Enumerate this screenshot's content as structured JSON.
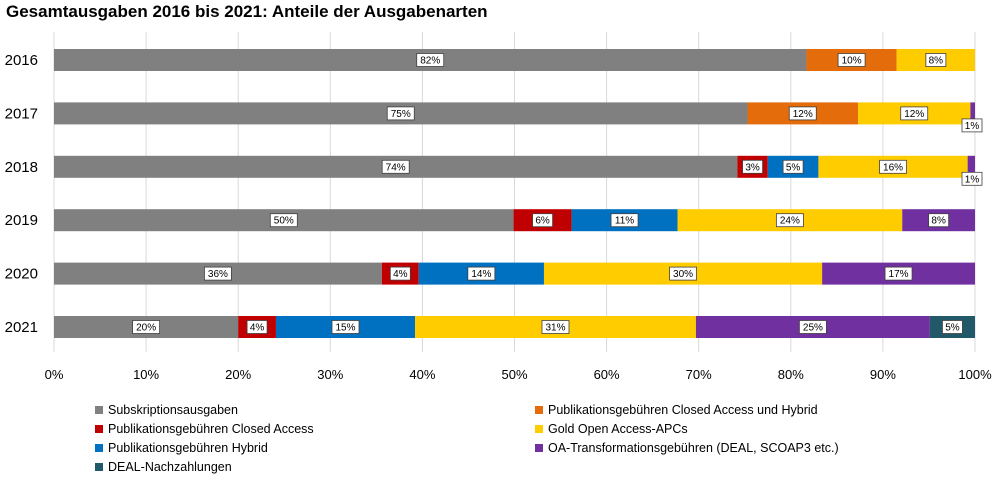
{
  "chart_data": {
    "type": "bar",
    "orientation": "horizontal",
    "stacked": "percent",
    "title": "Gesamtausgaben 2016 bis 2021: Anteile der Ausgabenarten",
    "categories": [
      "2016",
      "2017",
      "2018",
      "2019",
      "2020",
      "2021"
    ],
    "x_ticks": [
      "0%",
      "10%",
      "20%",
      "30%",
      "40%",
      "50%",
      "60%",
      "70%",
      "80%",
      "90%",
      "100%"
    ],
    "xlim": [
      0,
      100
    ],
    "grid": true,
    "legend_position": "bottom",
    "series": [
      {
        "name": "Subskriptionsausgaben",
        "color": "#808080",
        "values": [
          81.7,
          75.3,
          74.2,
          49.9,
          35.6,
          20.0
        ],
        "labels": [
          "82%",
          "75%",
          "74%",
          "50%",
          "36%",
          "20%"
        ]
      },
      {
        "name": "Publikationsgebühren Closed Access",
        "color": "#c00000",
        "values": [
          0,
          0,
          3.3,
          6.3,
          4.0,
          4.1
        ],
        "labels": [
          "",
          "",
          "3%",
          "6%",
          "4%",
          "4%"
        ]
      },
      {
        "name": "Publikationsgebühren Hybrid",
        "color": "#0070c0",
        "values": [
          0,
          0,
          5.5,
          11.5,
          13.6,
          15.1
        ],
        "labels": [
          "",
          "",
          "5%",
          "11%",
          "14%",
          "15%"
        ]
      },
      {
        "name": "Publikationsgebühren Closed Access und Hybrid",
        "color": "#e46c0a",
        "values": [
          9.8,
          12.0,
          0,
          0,
          0,
          0
        ],
        "labels": [
          "10%",
          "12%",
          "",
          "",
          "",
          ""
        ]
      },
      {
        "name": "Gold Open Access-APCs",
        "color": "#ffcc00",
        "values": [
          8.5,
          12.2,
          16.2,
          24.4,
          30.2,
          30.5
        ],
        "labels": [
          "8%",
          "12%",
          "16%",
          "24%",
          "30%",
          "31%"
        ]
      },
      {
        "name": "OA-Transformationsgebühren (DEAL, SCOAP3 etc.)",
        "color": "#7030a0",
        "values": [
          0,
          0.5,
          0.8,
          7.9,
          16.6,
          25.4
        ],
        "labels": [
          "",
          "1%",
          "1%",
          "8%",
          "17%",
          "25%"
        ]
      },
      {
        "name": "DEAL-Nachzahlungen",
        "color": "#215968",
        "values": [
          0,
          0,
          0,
          0,
          0,
          4.9
        ],
        "labels": [
          "",
          "",
          "",
          "",
          "",
          "5%"
        ]
      }
    ]
  },
  "legend_order": [
    0,
    3,
    1,
    4,
    2,
    5,
    6
  ]
}
